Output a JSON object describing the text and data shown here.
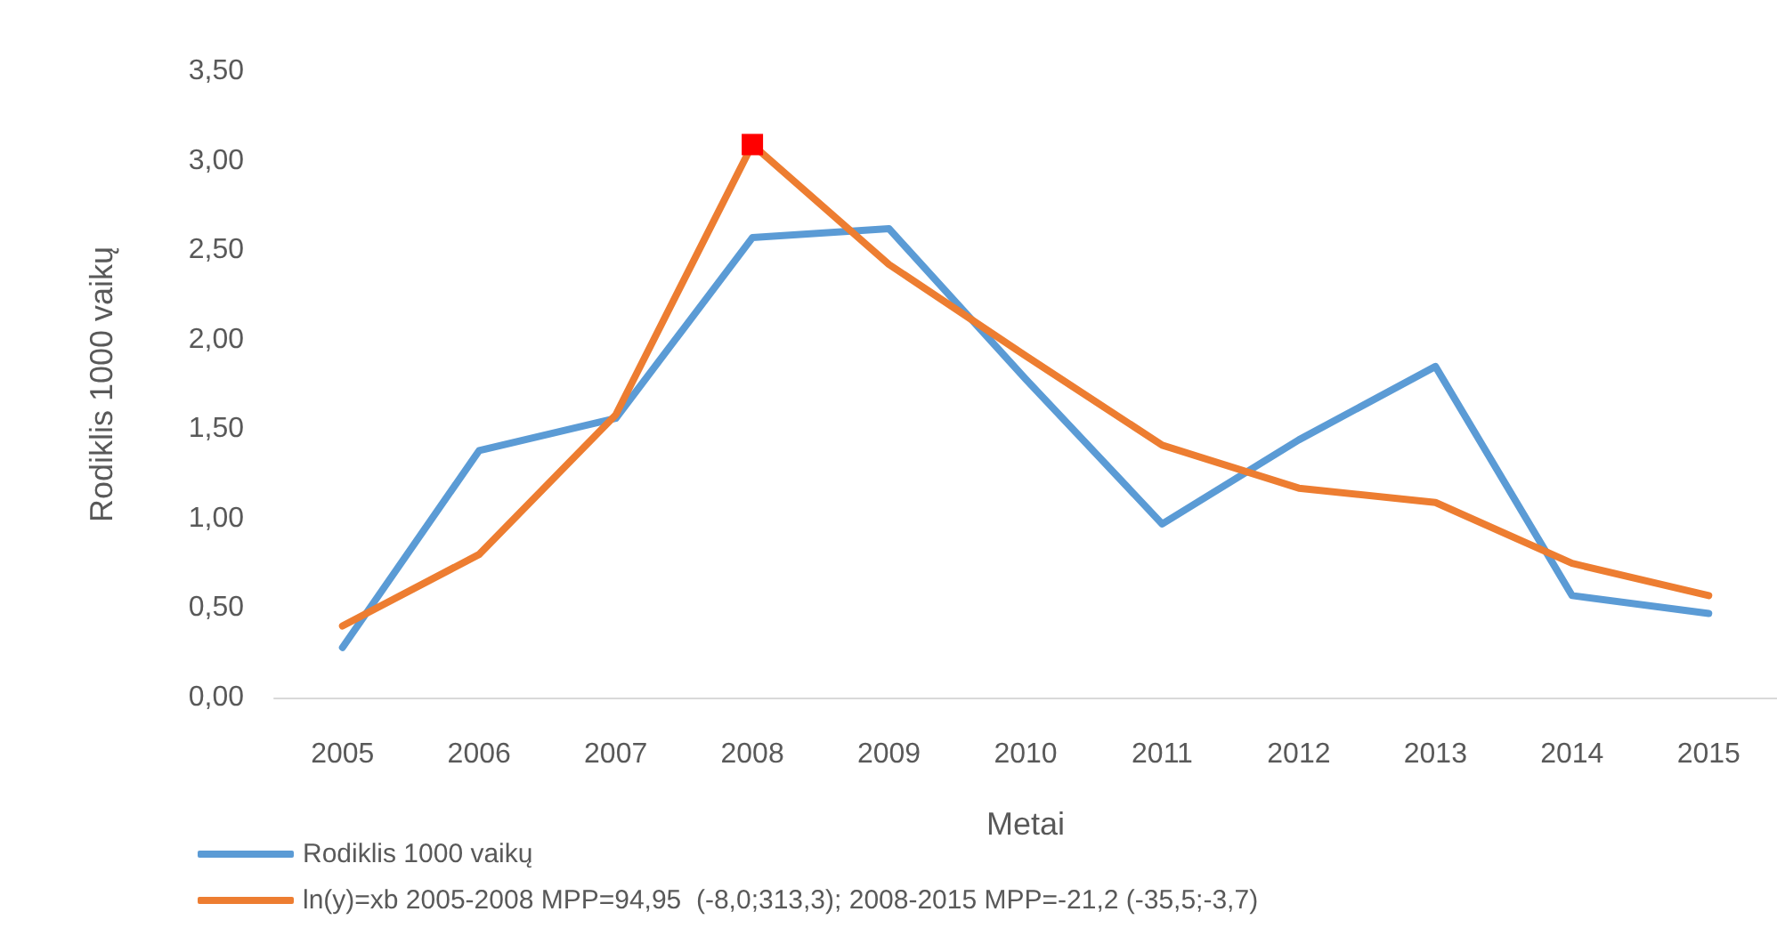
{
  "chart_data": {
    "type": "line",
    "xlabel": "Metai",
    "ylabel": "Rodiklis 1000 vaikų",
    "categories": [
      "2005",
      "2006",
      "2007",
      "2008",
      "2009",
      "2010",
      "2011",
      "2012",
      "2013",
      "2014",
      "2015"
    ],
    "series": [
      {
        "name": "Rodiklis 1000 vaikų",
        "color": "#5b9bd5",
        "values": [
          0.28,
          1.38,
          1.56,
          2.57,
          2.62,
          1.78,
          0.97,
          1.44,
          1.85,
          0.57,
          0.47
        ]
      },
      {
        "name": "ln(y)=xb 2005-2008 MPP=94,95  (-8,0;313,3); 2008-2015 MPP=-21,2 (-35,5;-3,7)",
        "color": "#ed7d31",
        "values": [
          0.4,
          0.8,
          1.58,
          3.09,
          2.42,
          1.91,
          1.41,
          1.17,
          1.09,
          0.75,
          0.57
        ]
      },
      {
        "type": "scatter",
        "values": [
          null,
          null,
          null,
          3.09,
          null,
          null,
          null,
          null,
          null,
          null,
          null
        ],
        "color": "#ff0000",
        "marker": "square"
      }
    ],
    "ylim": [
      0,
      3.5
    ],
    "yticks": [
      {
        "value": 0,
        "label": "0,00"
      },
      {
        "value": 0.5,
        "label": "0,50"
      },
      {
        "value": 1,
        "label": "1,00"
      },
      {
        "value": 1.5,
        "label": "1,50"
      },
      {
        "value": 2,
        "label": "2,00"
      },
      {
        "value": 2.5,
        "label": "2,50"
      },
      {
        "value": 3,
        "label": "3,00"
      },
      {
        "value": 3.5,
        "label": "3,50"
      }
    ],
    "grid": false,
    "legend": "bottom left",
    "marker": "none",
    "line_style": "solid"
  }
}
